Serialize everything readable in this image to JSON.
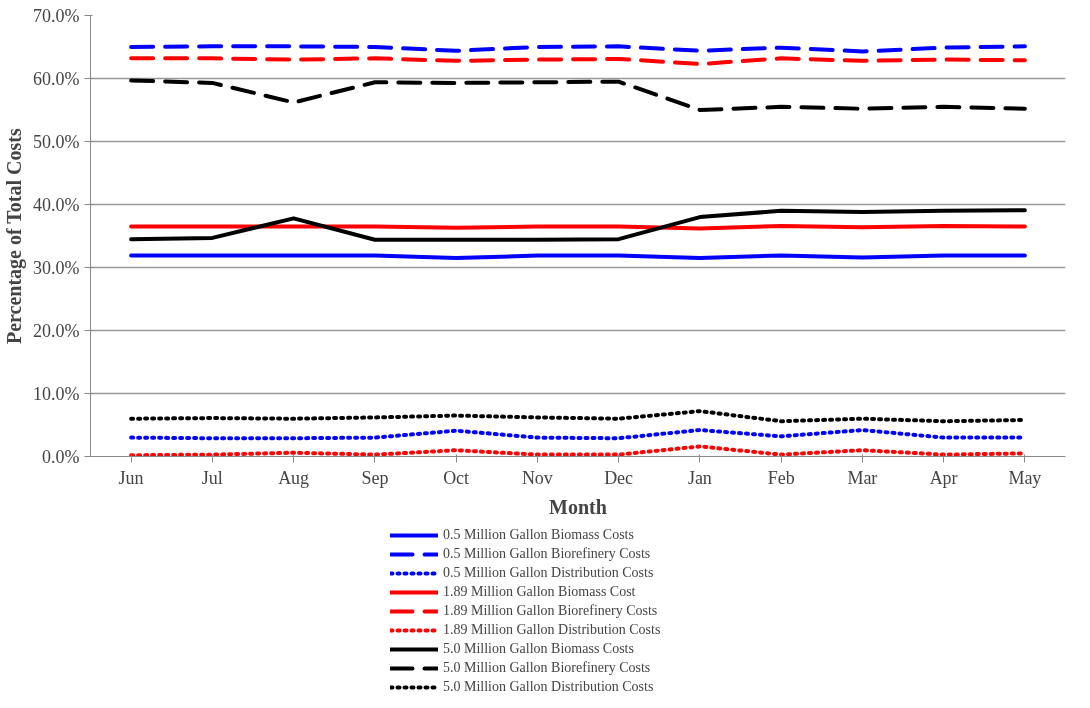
{
  "chart_data": {
    "type": "line",
    "xlabel": "Month",
    "ylabel": "Percentage of Total Costs",
    "categories": [
      "Jun",
      "Jul",
      "Aug",
      "Sep",
      "Oct",
      "Nov",
      "Dec",
      "Jan",
      "Feb",
      "Mar",
      "Apr",
      "May"
    ],
    "ylim": [
      0,
      70
    ],
    "yticks": [
      {
        "value": 0,
        "label": "0.0%"
      },
      {
        "value": 10,
        "label": "10.0%"
      },
      {
        "value": 20,
        "label": "20.0%"
      },
      {
        "value": 30,
        "label": "30.0%"
      },
      {
        "value": 40,
        "label": "40.0%"
      },
      {
        "value": 50,
        "label": "50.0%"
      },
      {
        "value": 60,
        "label": "60.0%"
      },
      {
        "value": 70,
        "label": "70.0%"
      }
    ],
    "grid": "y",
    "legend": "bottom",
    "series": [
      {
        "name": "0.5 Million Gallon Biomass Costs",
        "color": "#0000ff",
        "line_style": "solid",
        "values": [
          31.9,
          31.9,
          31.9,
          31.9,
          31.5,
          31.9,
          31.9,
          31.5,
          31.9,
          31.6,
          31.9,
          31.9
        ]
      },
      {
        "name": "0.5 Million Gallon Biorefinery Costs",
        "color": "#0000ff",
        "line_style": "dashed",
        "values": [
          65.0,
          65.1,
          65.1,
          65.0,
          64.4,
          65.0,
          65.1,
          64.4,
          64.9,
          64.3,
          64.9,
          65.1
        ]
      },
      {
        "name": "0.5 Million Gallon Distribution Costs",
        "color": "#0000ff",
        "line_style": "dotted",
        "values": [
          3.0,
          2.9,
          2.9,
          3.0,
          4.1,
          3.0,
          2.9,
          4.2,
          3.2,
          4.2,
          3.0,
          3.0
        ]
      },
      {
        "name": "1.89 Million Gallon Biomass Cost",
        "color": "#ff0000",
        "line_style": "solid",
        "values": [
          36.5,
          36.5,
          36.5,
          36.5,
          36.3,
          36.5,
          36.5,
          36.2,
          36.6,
          36.4,
          36.6,
          36.5
        ]
      },
      {
        "name": "1.89 Million Gallon Biorefinery Costs",
        "color": "#ff0000",
        "line_style": "dashed",
        "values": [
          63.2,
          63.2,
          63.0,
          63.2,
          62.8,
          63.0,
          63.1,
          62.3,
          63.2,
          62.8,
          63.0,
          62.9
        ]
      },
      {
        "name": "1.89 Million Gallon Distribution Costs",
        "color": "#ff0000",
        "line_style": "dotted",
        "values": [
          0.2,
          0.3,
          0.6,
          0.3,
          1.0,
          0.3,
          0.3,
          1.6,
          0.3,
          1.0,
          0.3,
          0.5
        ]
      },
      {
        "name": "5.0 Million Gallon Biomass Costs",
        "color": "#000000",
        "line_style": "solid",
        "values": [
          34.5,
          34.7,
          37.8,
          34.4,
          34.4,
          34.4,
          34.5,
          38.0,
          39.0,
          38.8,
          39.0,
          39.1
        ]
      },
      {
        "name": "5.0 Million Gallon Biorefinery Costs",
        "color": "#000000",
        "line_style": "dashed",
        "values": [
          59.7,
          59.3,
          56.2,
          59.4,
          59.3,
          59.4,
          59.5,
          55.0,
          55.5,
          55.2,
          55.5,
          55.2
        ]
      },
      {
        "name": "5.0 Million Gallon Distribution Costs",
        "color": "#000000",
        "line_style": "dotted",
        "values": [
          6.0,
          6.1,
          6.0,
          6.2,
          6.5,
          6.2,
          6.0,
          7.2,
          5.6,
          6.0,
          5.6,
          5.8
        ]
      }
    ]
  }
}
